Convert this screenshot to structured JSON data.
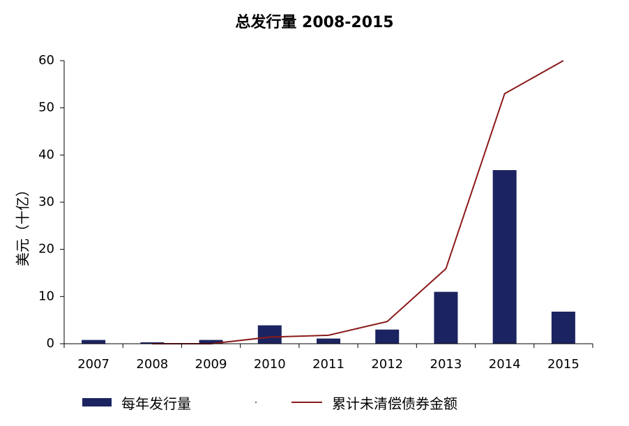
{
  "chart_data": {
    "type": "bar",
    "title": "总发行量  2008-2015",
    "ylabel": "美元（十亿）",
    "xlabel": "",
    "categories": [
      "2007",
      "2008",
      "2009",
      "2010",
      "2011",
      "2012",
      "2013",
      "2014",
      "2015"
    ],
    "ylim": [
      0,
      60
    ],
    "yticks": [
      0,
      10,
      20,
      30,
      40,
      50,
      60
    ],
    "grid": false,
    "legend_position": "bottom",
    "series": [
      {
        "name": "每年发行量",
        "kind": "bar",
        "color": "#1b2460",
        "values": [
          0.8,
          0.3,
          0.8,
          3.9,
          1.1,
          3.0,
          11.0,
          36.8,
          6.8
        ]
      },
      {
        "name": "累计未清偿债券金额",
        "kind": "line",
        "color": "#8b1a1a",
        "values": [
          null,
          0,
          0,
          1.4,
          1.8,
          4.7,
          15.9,
          53.0,
          60.0
        ]
      }
    ]
  }
}
